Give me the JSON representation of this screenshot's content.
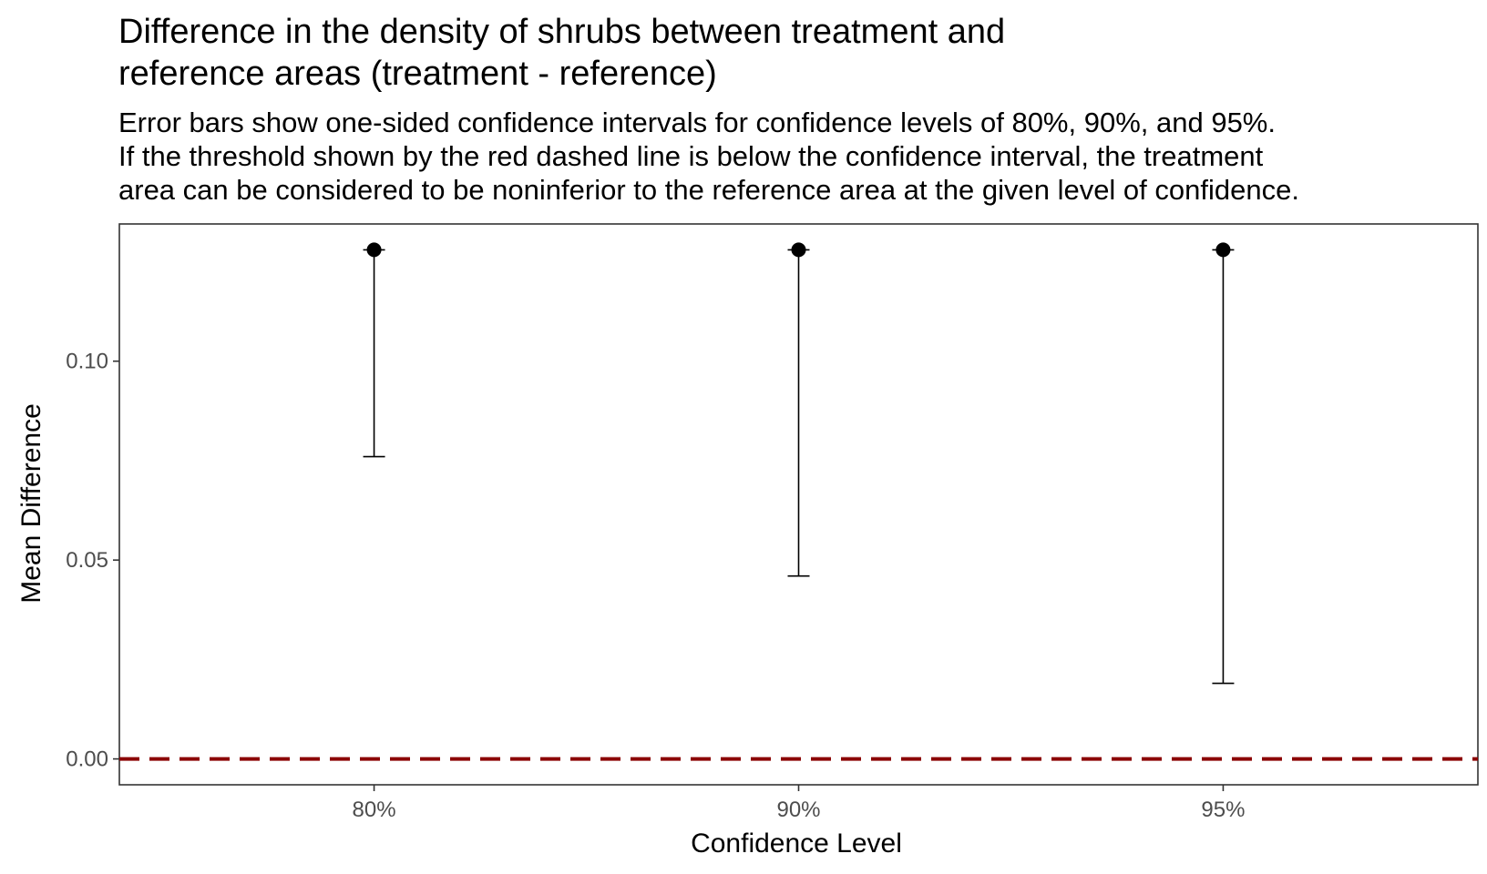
{
  "chart_data": {
    "type": "errorbar",
    "title": [
      "Difference in the density of shrubs between treatment and",
      "reference areas (treatment - reference)"
    ],
    "subtitle": [
      "Error bars show one-sided confidence intervals for confidence levels of 80%, 90%, and 95%.",
      "If the threshold shown by the red dashed line is below the confidence interval, the treatment",
      "area can be considered to be noninferior to the reference area at the given level of confidence."
    ],
    "xlabel": "Confidence Level",
    "ylabel": "Mean Difference",
    "categories": [
      "80%",
      "90%",
      "95%"
    ],
    "estimate": [
      0.128,
      0.128,
      0.128
    ],
    "lower": [
      0.076,
      0.046,
      0.019
    ],
    "yticks": [
      0.0,
      0.05,
      0.1
    ],
    "ytick_labels": [
      "0.00",
      "0.05",
      "0.10"
    ],
    "ylim": [
      -0.0065,
      0.1345
    ],
    "threshold": 0.0,
    "threshold_color": "#8b0000",
    "point_color": "#000000",
    "grid": false,
    "border": true
  }
}
